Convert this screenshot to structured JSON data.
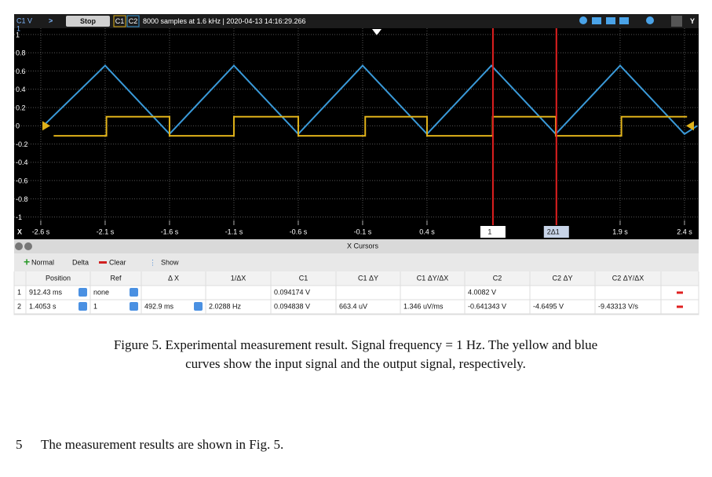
{
  "scope": {
    "toolbar": {
      "channel": "C1 V",
      "button": "Stop",
      "ch1": "C1",
      "ch2": "C2",
      "status": "8000 samples at 1.6 kHz | 2020-04-13 14:16:29.266",
      "right_label": "Y"
    },
    "plot": {
      "xlim": [
        -2.807,
        2.51
      ],
      "ylim": [
        -1.02,
        1.0
      ],
      "yticks": [
        1,
        0.8,
        0.6,
        0.4,
        0.2,
        0,
        -0.2,
        -0.4,
        -0.6,
        -0.8,
        -1
      ],
      "x_axis_label": "X",
      "xticks": [
        {
          "value": -2.6,
          "label": "-2.6 s"
        },
        {
          "value": -2.1,
          "label": "-2.1 s"
        },
        {
          "value": -1.6,
          "label": "-1.6 s"
        },
        {
          "value": -1.1,
          "label": "-1.1 s"
        },
        {
          "value": -0.6,
          "label": "-0.6 s"
        },
        {
          "value": -0.1,
          "label": "-0.1 s"
        },
        {
          "value": 0.4,
          "label": "0.4 s"
        },
        {
          "value": 1.9,
          "label": "1.9 s"
        },
        {
          "value": 2.4,
          "label": "2.4 s"
        }
      ],
      "cursors": [
        {
          "x": 0.912,
          "label": "1"
        },
        {
          "x": 1.405,
          "label": "2Δ1"
        }
      ],
      "series": [
        {
          "color": "#3a9ad9",
          "x": [
            -2.58,
            -2.1,
            -1.6,
            -1.1,
            -0.6,
            -0.1,
            0.4,
            0.9,
            1.4,
            1.9,
            2.4,
            2.5
          ],
          "values": [
            0.0,
            0.66,
            -0.09,
            0.66,
            -0.09,
            0.66,
            -0.09,
            0.66,
            -0.09,
            0.66,
            -0.09,
            0.0
          ]
        },
        {
          "color": "#e0b21a",
          "x": [
            -2.5,
            -2.09,
            -2.09,
            -1.6,
            -1.6,
            -1.1,
            -1.1,
            -0.6,
            -0.6,
            -0.08,
            -0.08,
            0.4,
            0.4,
            0.91,
            0.91,
            1.4,
            1.4,
            1.91,
            1.91,
            2.42
          ],
          "values": [
            -0.11,
            -0.11,
            0.1,
            0.1,
            -0.11,
            -0.11,
            0.1,
            0.1,
            -0.11,
            -0.11,
            0.1,
            0.1,
            -0.11,
            -0.11,
            0.1,
            0.1,
            -0.11,
            -0.11,
            0.1,
            0.1
          ]
        }
      ]
    },
    "panel_title": "X Cursors",
    "cursor_toolbar": {
      "normal": "Normal",
      "delta": "Delta",
      "clear": "Clear",
      "show": "Show"
    },
    "table": {
      "header": [
        null,
        "Position",
        "Ref",
        "Δ X",
        "1/ΔX",
        "C1",
        "C1 ΔY",
        "C1 ΔY/ΔX",
        "C2",
        "C2 ΔY",
        "C2 ΔY/ΔX"
      ],
      "rows": [
        [
          "1",
          "912.43 ms",
          "none",
          null,
          null,
          "0.094174 V",
          null,
          null,
          "4.0082 V",
          null,
          null
        ],
        [
          "2",
          "1.4053 s",
          "1",
          "492.9 ms",
          "2.0288 Hz",
          "0.094838 V",
          "663.4 uV",
          "1.346 uV/ms",
          "-0.641343 V",
          "-4.6495 V",
          "-9.43313 V/s"
        ]
      ]
    }
  },
  "caption": {
    "lines": [
      "Figure 5. Experimental measurement result. Signal frequency = 1 Hz. The yellow and blue",
      "curves show the input signal and the output signal, respectively."
    ]
  },
  "body": {
    "number": "5",
    "text": "The measurement results are shown in Fig. 5."
  }
}
